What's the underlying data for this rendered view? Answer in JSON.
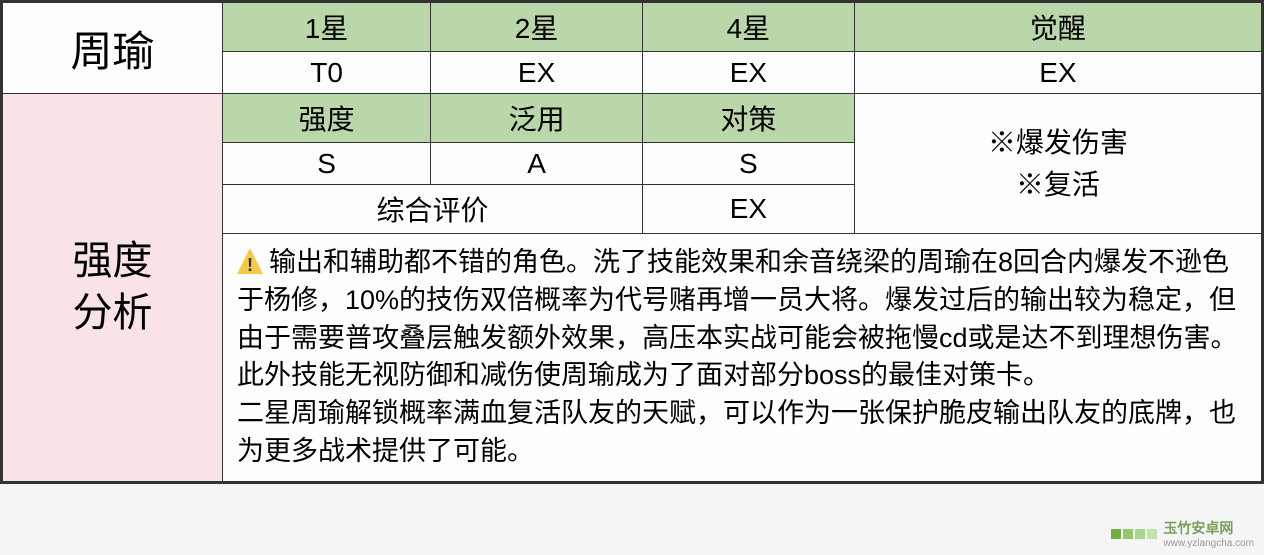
{
  "character": {
    "name": "周瑜"
  },
  "stars": {
    "headers": [
      "1星",
      "2星",
      "4星",
      "觉醒"
    ],
    "values": [
      "T0",
      "EX",
      "EX",
      "EX"
    ]
  },
  "analysis": {
    "label": "强度\n分析",
    "metric_headers": [
      "强度",
      "泛用",
      "对策"
    ],
    "metric_values": [
      "S",
      "A",
      "S"
    ],
    "overall_label": "综合评价",
    "overall_value": "EX",
    "features": [
      "※爆发伤害",
      "※复活"
    ],
    "description_p1": "输出和辅助都不错的角色。洗了技能效果和余音绕梁的周瑜在8回合内爆发不逊色于杨修，10%的技伤双倍概率为代号赌再增一员大将。爆发过后的输出较为稳定，但由于需要普攻叠层触发额外效果，高压本实战可能会被拖慢cd或是达不到理想伤害。此外技能无视防御和减伤使周瑜成为了面对部分boss的最佳对策卡。",
    "description_p2": "二星周瑜解锁概率满血复活队友的天赋，可以作为一张保护脆皮输出队友的底牌，也为更多战术提供了可能。"
  },
  "watermark": {
    "text": "玉竹安卓网",
    "url": "www.yzlangcha.com"
  },
  "colors": {
    "green_header": "#b9d7a8",
    "pink_label": "#f9e3e6",
    "border": "#333333",
    "bg": "#fefefe",
    "warn": "#f7c948"
  }
}
